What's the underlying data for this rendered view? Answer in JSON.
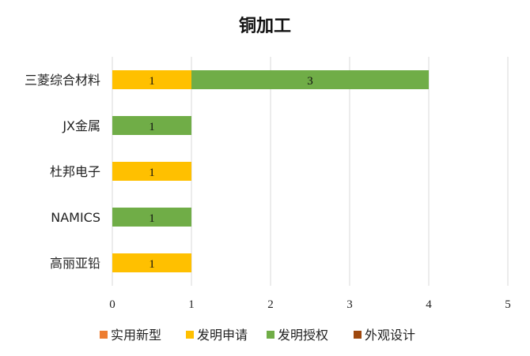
{
  "chart_data": {
    "type": "bar",
    "orientation": "horizontal",
    "stacked": true,
    "title": "铜加工",
    "categories": [
      "三菱综合材料",
      "JX金属",
      "杜邦电子",
      "NAMICS",
      "高丽亚铅"
    ],
    "series": [
      {
        "name": "实用新型",
        "color": "#ED7D31",
        "values": [
          0,
          0,
          0,
          0,
          0
        ]
      },
      {
        "name": "发明申请",
        "color": "#FFC000",
        "values": [
          1,
          0,
          1,
          0,
          1
        ]
      },
      {
        "name": "发明授权",
        "color": "#70AD47",
        "values": [
          3,
          1,
          0,
          1,
          0
        ]
      },
      {
        "name": "外观设计",
        "color": "#9E480E",
        "values": [
          0,
          0,
          0,
          0,
          0
        ]
      }
    ],
    "xlim": [
      0,
      5
    ],
    "xticks": [
      "0",
      "1",
      "2",
      "3",
      "4",
      "5"
    ],
    "grid": true,
    "legend_position": "bottom",
    "xlabel": "",
    "ylabel": ""
  }
}
